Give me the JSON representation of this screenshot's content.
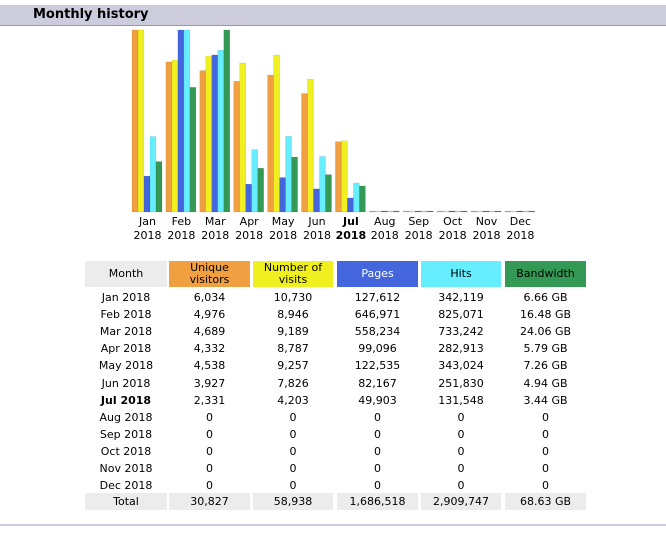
{
  "header": {
    "title": "Monthly history"
  },
  "chart_data": {
    "type": "bar",
    "categories": [
      "Jan 2018",
      "Feb 2018",
      "Mar 2018",
      "Apr 2018",
      "May 2018",
      "Jun 2018",
      "Jul 2018",
      "Aug 2018",
      "Sep 2018",
      "Oct 2018",
      "Nov 2018",
      "Dec 2018"
    ],
    "category_header": "Month",
    "series": [
      {
        "name": "Unique visitors",
        "color": "#f0a040",
        "values": [
          6034,
          4976,
          4689,
          4332,
          4538,
          3927,
          2331,
          0,
          0,
          0,
          0,
          0
        ],
        "value_labels": [
          "6,034",
          "4,976",
          "4,689",
          "4,332",
          "4,538",
          "3,927",
          "2,331",
          "0",
          "0",
          "0",
          "0",
          "0"
        ]
      },
      {
        "name": "Number of visits",
        "color": "#f0f020",
        "values": [
          10730,
          8946,
          9189,
          8787,
          9257,
          7826,
          4203,
          0,
          0,
          0,
          0,
          0
        ],
        "value_labels": [
          "10,730",
          "8,946",
          "9,189",
          "8,787",
          "9,257",
          "7,826",
          "4,203",
          "0",
          "0",
          "0",
          "0",
          "0"
        ]
      },
      {
        "name": "Pages",
        "color": "#4466dd",
        "values": [
          127612,
          646971,
          558234,
          99096,
          122535,
          82167,
          49903,
          0,
          0,
          0,
          0,
          0
        ],
        "value_labels": [
          "127,612",
          "646,971",
          "558,234",
          "99,096",
          "122,535",
          "82,167",
          "49,903",
          "0",
          "0",
          "0",
          "0",
          "0"
        ]
      },
      {
        "name": "Hits",
        "color": "#66eeff",
        "values": [
          342119,
          825071,
          733242,
          282913,
          343024,
          251830,
          131548,
          0,
          0,
          0,
          0,
          0
        ],
        "value_labels": [
          "342,119",
          "825,071",
          "733,242",
          "282,913",
          "343,024",
          "251,830",
          "131,548",
          "0",
          "0",
          "0",
          "0",
          "0"
        ]
      },
      {
        "name": "Bandwidth",
        "color": "#339955",
        "values": [
          6.66,
          16.48,
          24.06,
          5.79,
          7.26,
          4.94,
          3.44,
          0,
          0,
          0,
          0,
          0
        ],
        "value_labels": [
          "6.66 GB",
          "16.48 GB",
          "24.06 GB",
          "5.79 GB",
          "7.26 GB",
          "4.94 GB",
          "3.44 GB",
          "0",
          "0",
          "0",
          "0",
          "0"
        ]
      }
    ],
    "totals": {
      "label": "Total",
      "values": [
        "30,827",
        "58,938",
        "1,686,518",
        "2,909,747",
        "68.63 GB"
      ]
    }
  }
}
